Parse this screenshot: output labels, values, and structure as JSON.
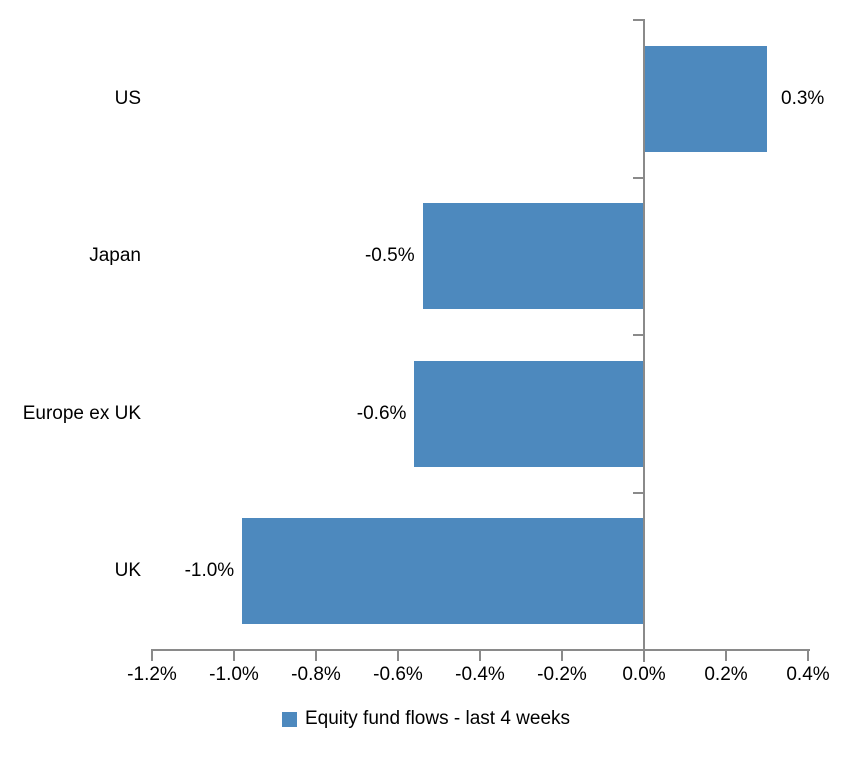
{
  "chart_data": {
    "type": "bar",
    "orientation": "horizontal",
    "title": "",
    "xlabel": "",
    "ylabel": "",
    "categories": [
      "US",
      "Japan",
      "Europe ex UK",
      "UK"
    ],
    "values": [
      0.3,
      -0.5,
      -0.6,
      -1.0
    ],
    "data_labels": [
      "0.3%",
      "-0.5%",
      "-0.6%",
      "-1.0%"
    ],
    "bar_extents_pct": [
      0.3,
      -0.54,
      -0.56,
      -0.98
    ],
    "xlim": [
      -1.2,
      0.4
    ],
    "x_tick_values": [
      -1.2,
      -1.0,
      -0.8,
      -0.6,
      -0.4,
      -0.2,
      0.0,
      0.2,
      0.4
    ],
    "x_tick_labels": [
      "-1.2%",
      "-1.0%",
      "-0.8%",
      "-0.6%",
      "-0.4%",
      "-0.2%",
      "0.0%",
      "0.2%",
      "0.4%"
    ],
    "grid": "off",
    "legend": {
      "position": "bottom",
      "label": "Equity fund flows - last 4 weeks",
      "marker_color": "#4d89be"
    },
    "colors": {
      "bar": "#4d89be",
      "axis": "#8a8a8a",
      "text": "#000000",
      "background": "#ffffff"
    }
  }
}
